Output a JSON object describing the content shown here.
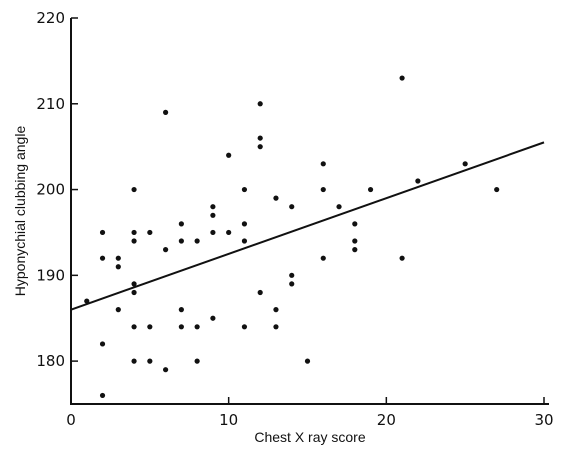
{
  "chart_data": {
    "type": "scatter",
    "xlabel": "Chest X ray score",
    "ylabel": "Hyponychial clubbing angle",
    "xlim": [
      0,
      30
    ],
    "ylim": [
      175,
      220
    ],
    "x_ticks": [
      0,
      10,
      20,
      30
    ],
    "y_ticks": [
      180,
      190,
      200,
      210,
      220
    ],
    "grid": false,
    "regression_line": {
      "x": [
        0,
        30
      ],
      "y": [
        186,
        205.5
      ]
    },
    "points": [
      {
        "x": 1,
        "y": 187
      },
      {
        "x": 2,
        "y": 195
      },
      {
        "x": 2,
        "y": 192
      },
      {
        "x": 2,
        "y": 182
      },
      {
        "x": 2,
        "y": 176
      },
      {
        "x": 3,
        "y": 192
      },
      {
        "x": 3,
        "y": 191
      },
      {
        "x": 3,
        "y": 186
      },
      {
        "x": 4,
        "y": 200
      },
      {
        "x": 4,
        "y": 195
      },
      {
        "x": 4,
        "y": 194
      },
      {
        "x": 4,
        "y": 189
      },
      {
        "x": 4,
        "y": 188
      },
      {
        "x": 4,
        "y": 184
      },
      {
        "x": 4,
        "y": 180
      },
      {
        "x": 5,
        "y": 195
      },
      {
        "x": 5,
        "y": 184
      },
      {
        "x": 5,
        "y": 180
      },
      {
        "x": 6,
        "y": 209
      },
      {
        "x": 6,
        "y": 193
      },
      {
        "x": 6,
        "y": 179
      },
      {
        "x": 7,
        "y": 196
      },
      {
        "x": 7,
        "y": 194
      },
      {
        "x": 7,
        "y": 186
      },
      {
        "x": 7,
        "y": 184
      },
      {
        "x": 8,
        "y": 194
      },
      {
        "x": 8,
        "y": 184
      },
      {
        "x": 8,
        "y": 180
      },
      {
        "x": 9,
        "y": 198
      },
      {
        "x": 9,
        "y": 197
      },
      {
        "x": 9,
        "y": 195
      },
      {
        "x": 9,
        "y": 185
      },
      {
        "x": 10,
        "y": 204
      },
      {
        "x": 10,
        "y": 195
      },
      {
        "x": 11,
        "y": 200
      },
      {
        "x": 11,
        "y": 196
      },
      {
        "x": 11,
        "y": 194
      },
      {
        "x": 11,
        "y": 184
      },
      {
        "x": 12,
        "y": 210
      },
      {
        "x": 12,
        "y": 206
      },
      {
        "x": 12,
        "y": 205
      },
      {
        "x": 12,
        "y": 188
      },
      {
        "x": 13,
        "y": 199
      },
      {
        "x": 13,
        "y": 186
      },
      {
        "x": 13,
        "y": 184
      },
      {
        "x": 14,
        "y": 198
      },
      {
        "x": 14,
        "y": 190
      },
      {
        "x": 14,
        "y": 189
      },
      {
        "x": 15,
        "y": 180
      },
      {
        "x": 16,
        "y": 203
      },
      {
        "x": 16,
        "y": 200
      },
      {
        "x": 16,
        "y": 192
      },
      {
        "x": 17,
        "y": 198
      },
      {
        "x": 18,
        "y": 196
      },
      {
        "x": 18,
        "y": 194
      },
      {
        "x": 18,
        "y": 193
      },
      {
        "x": 19,
        "y": 200
      },
      {
        "x": 21,
        "y": 213
      },
      {
        "x": 21,
        "y": 192
      },
      {
        "x": 22,
        "y": 201
      },
      {
        "x": 25,
        "y": 203
      },
      {
        "x": 27,
        "y": 200
      }
    ]
  }
}
